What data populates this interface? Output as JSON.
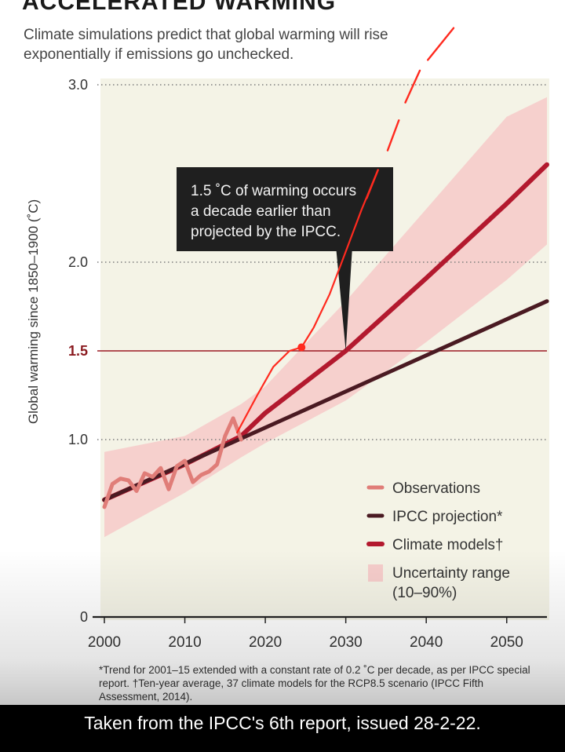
{
  "header": {
    "headline": "ACCELERATED WARMING",
    "subtitle": "Climate simulations predict that global warming will rise exponentially if emissions go unchecked."
  },
  "chart_data": {
    "type": "line",
    "title": "ACCELERATED WARMING",
    "subtitle": "Climate simulations predict that global warming will rise exponentially if emissions go unchecked.",
    "xlabel": "",
    "ylabel": "Global warming since 1850–1900 (˚C)",
    "xlim": [
      2000,
      2055
    ],
    "ylim": [
      0,
      3.0
    ],
    "x_ticks": [
      "2000",
      "2010",
      "2020",
      "2030",
      "2040",
      "2050"
    ],
    "y_ticks": [
      "0",
      "1.0",
      "1.5",
      "2.0",
      "3.0"
    ],
    "threshold": {
      "value": 1.5,
      "label": "1.5"
    },
    "grid": "dotted horizontal at 1.0, 2.0, 3.0",
    "legend_position": "bottom-right",
    "series": [
      {
        "name": "Observations",
        "color": "#e07d78",
        "points": [
          [
            2000,
            0.62
          ],
          [
            2001,
            0.75
          ],
          [
            2002,
            0.78
          ],
          [
            2003,
            0.77
          ],
          [
            2004,
            0.71
          ],
          [
            2005,
            0.81
          ],
          [
            2006,
            0.79
          ],
          [
            2007,
            0.84
          ],
          [
            2008,
            0.72
          ],
          [
            2009,
            0.85
          ],
          [
            2010,
            0.88
          ],
          [
            2011,
            0.76
          ],
          [
            2012,
            0.8
          ],
          [
            2013,
            0.82
          ],
          [
            2014,
            0.86
          ],
          [
            2015,
            1.02
          ],
          [
            2016,
            1.12
          ],
          [
            2017,
            1.0
          ]
        ]
      },
      {
        "name": "IPCC projection*",
        "color": "#4a1a22",
        "points": [
          [
            2000,
            0.66
          ],
          [
            2055,
            1.78
          ]
        ]
      },
      {
        "name": "Climate models†",
        "color": "#b3192e",
        "points": [
          [
            2000,
            0.66
          ],
          [
            2010,
            0.86
          ],
          [
            2017,
            1.02
          ],
          [
            2020,
            1.15
          ],
          [
            2030,
            1.5
          ],
          [
            2040,
            1.91
          ],
          [
            2050,
            2.33
          ],
          [
            2055,
            2.55
          ]
        ]
      },
      {
        "name": "Uncertainty range (10–90%)",
        "color": "#f6cdcb",
        "upper": [
          [
            2000,
            0.93
          ],
          [
            2010,
            1.02
          ],
          [
            2017,
            1.2
          ],
          [
            2020,
            1.3
          ],
          [
            2030,
            1.78
          ],
          [
            2040,
            2.3
          ],
          [
            2050,
            2.82
          ],
          [
            2055,
            2.93
          ]
        ],
        "lower": [
          [
            2000,
            0.45
          ],
          [
            2010,
            0.7
          ],
          [
            2017,
            0.9
          ],
          [
            2020,
            0.98
          ],
          [
            2030,
            1.22
          ],
          [
            2040,
            1.55
          ],
          [
            2050,
            1.9
          ],
          [
            2055,
            2.1
          ]
        ]
      }
    ],
    "overlay": {
      "name": "hand-drawn trend",
      "color": "#ff2a1f",
      "points": [
        [
          2016.5,
          1.04
        ],
        [
          2019.0,
          1.25
        ],
        [
          2021.0,
          1.41
        ],
        [
          2023.0,
          1.5
        ],
        [
          2024.5,
          1.52
        ],
        [
          2026.0,
          1.63
        ],
        [
          2028.0,
          1.82
        ],
        [
          2029.5,
          2.0
        ],
        [
          2032.0,
          2.3
        ],
        [
          2034.0,
          2.52
        ],
        [
          2036.5,
          2.78
        ],
        [
          2039.0,
          3.08
        ],
        [
          2043.0,
          3.3
        ]
      ],
      "marker": [
        2024.5,
        1.52
      ]
    },
    "annotation": "1.5 ˚C of warming occurs a decade earlier than projected by the IPCC.",
    "legend": [
      "Observations",
      "IPCC projection*",
      "Climate models†",
      "Uncertainty range",
      "(10–90%)"
    ],
    "footnote": "*Trend for 2001–15 extended with a constant rate of 0.2 ˚C per decade, as per IPCC special report. †Ten-year average, 37 climate models for the RCP8.5 scenario (IPCC Fifth Assessment, 2014)."
  },
  "caption": "Taken from the IPCC's 6th report, issued 28-2-22."
}
